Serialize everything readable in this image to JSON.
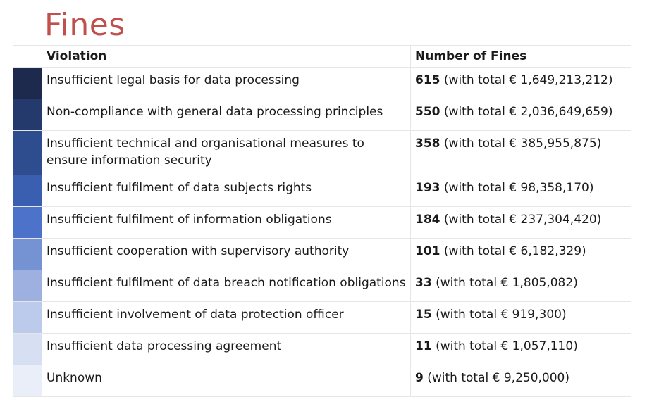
{
  "page": {
    "title": "Fines"
  },
  "table": {
    "headers": {
      "swatch": "",
      "violation": "Violation",
      "fines": "Number of Fines"
    },
    "rows": [
      {
        "color": "#1e2a4d",
        "violation": "Insufficient legal basis for data processing",
        "count": "615",
        "total": " (with total € 1,649,213,212)"
      },
      {
        "color": "#243a6c",
        "violation": "Non-compliance with general data processing principles",
        "count": "550",
        "total": " (with total € 2,036,649,659)"
      },
      {
        "color": "#2e4d8f",
        "violation": "Insufficient technical and organisational measures to ensure information security",
        "count": "358",
        "total": " (with total € 385,955,875)"
      },
      {
        "color": "#3a5fb0",
        "violation": "Insufficient fulfilment of data subjects rights",
        "count": "193",
        "total": " (with total € 98,358,170)"
      },
      {
        "color": "#4d72c9",
        "violation": "Insufficient fulfilment of information obligations",
        "count": "184",
        "total": " (with total € 237,304,420)"
      },
      {
        "color": "#7592d2",
        "violation": "Insufficient cooperation with supervisory authority",
        "count": "101",
        "total": " (with total € 6,182,329)"
      },
      {
        "color": "#9db0e0",
        "violation": "Insufficient fulfilment of data breach notification obligations",
        "count": "33",
        "total": " (with total € 1,805,082)"
      },
      {
        "color": "#bccbeb",
        "violation": "Insufficient involvement of data protection officer",
        "count": "15",
        "total": " (with total € 919,300)"
      },
      {
        "color": "#d7e0f3",
        "violation": "Insufficient data processing agreement",
        "count": "11",
        "total": " (with total € 1,057,110)"
      },
      {
        "color": "#e9eef8",
        "violation": "Unknown",
        "count": "9",
        "total": " (with total € 9,250,000)"
      }
    ]
  }
}
